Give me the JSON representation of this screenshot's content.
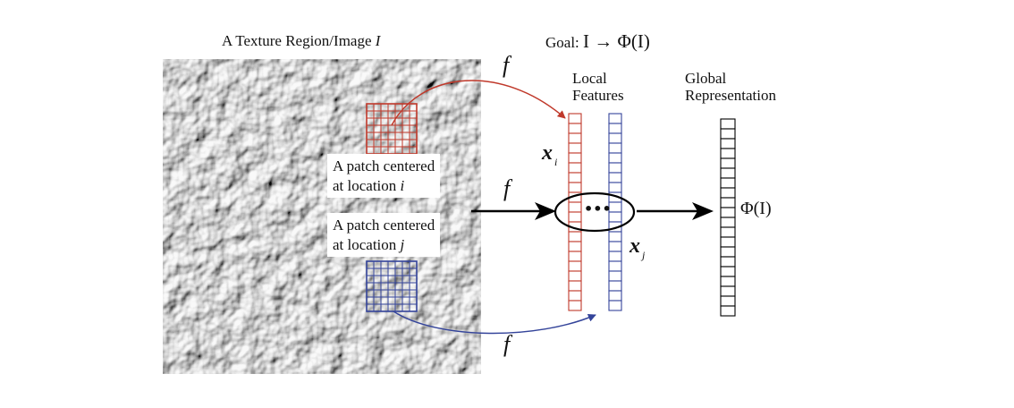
{
  "texture": {
    "title_prefix": "A Texture Region/Image ",
    "title_var": "I"
  },
  "goal": {
    "prefix": "Goal: ",
    "formula": "I → Φ(I)"
  },
  "mapping_symbol": "f",
  "local_features": {
    "line1": "Local",
    "line2": "Features"
  },
  "global_representation": {
    "line1": "Global",
    "line2": "Representation",
    "symbol": "Φ(I)"
  },
  "patch_i": {
    "line1": "A patch centered",
    "line2_prefix": "at location ",
    "line2_var": "i"
  },
  "patch_j": {
    "line1": "A patch centered",
    "line2_prefix": "at location ",
    "line2_var": "j"
  },
  "feature_i": {
    "var": "x",
    "sub": "i"
  },
  "feature_j": {
    "var": "x",
    "sub": "j"
  },
  "ellipsis": "•••",
  "colors": {
    "red": "#c0392b",
    "blue": "#34449a",
    "black": "#000000"
  }
}
